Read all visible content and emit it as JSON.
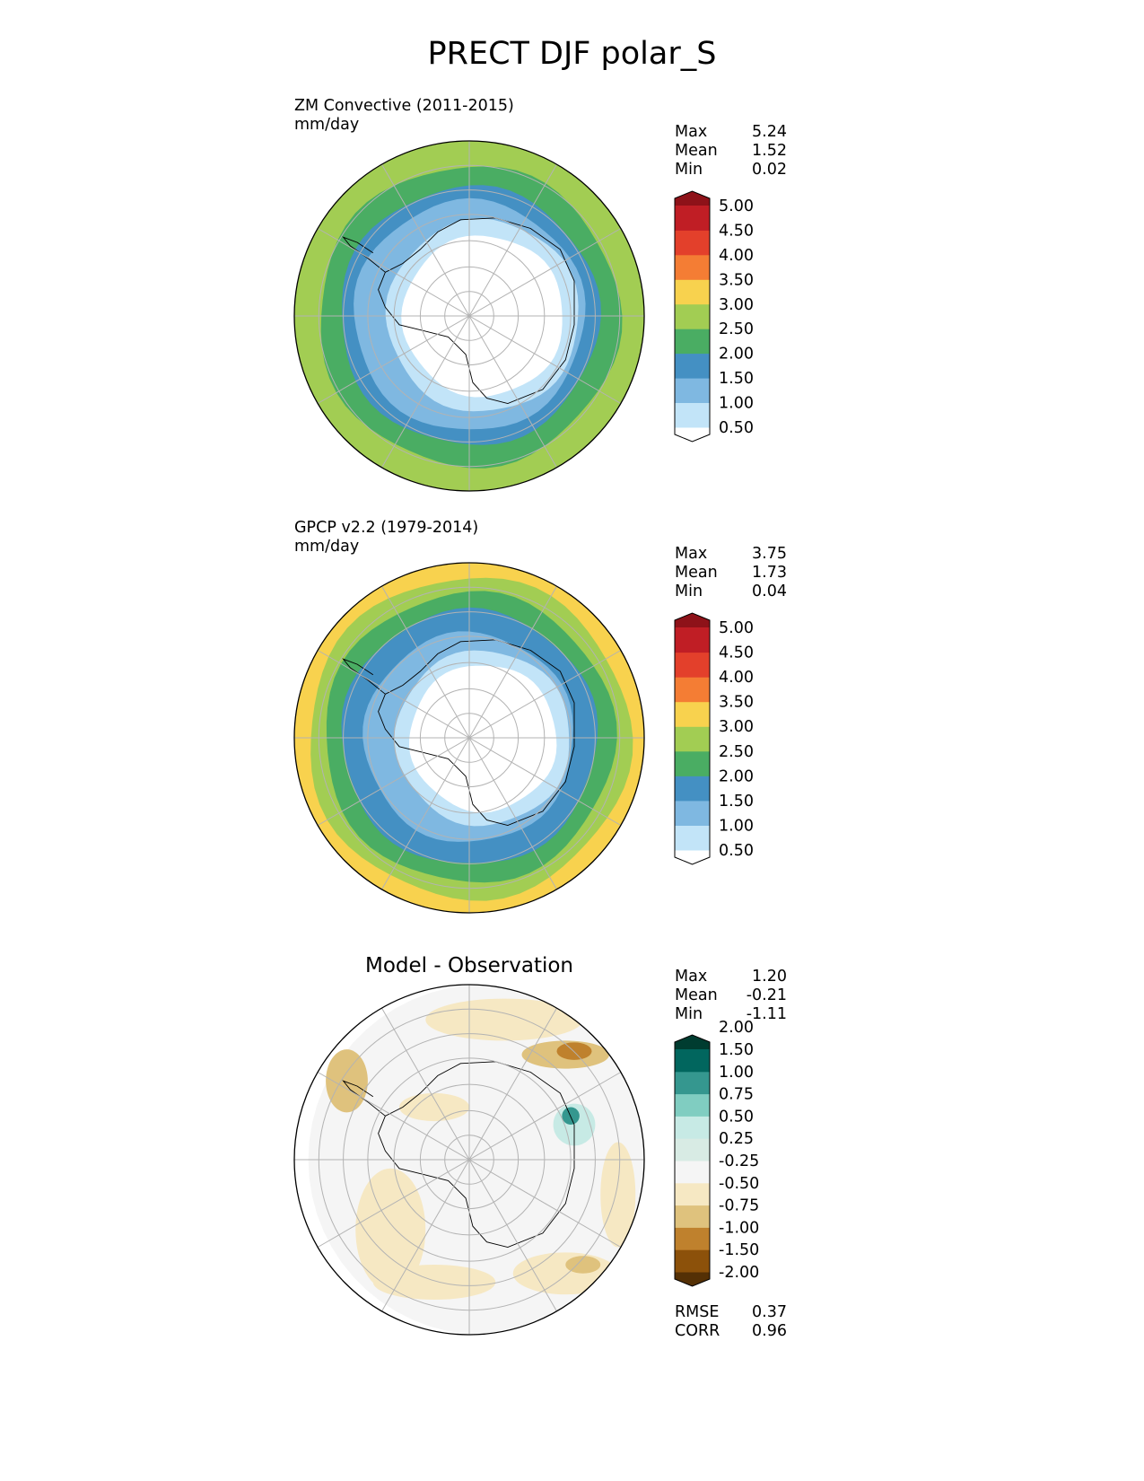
{
  "title": "PRECT DJF polar_S",
  "panels": [
    {
      "title_line1": "ZM Convective (2011-2015)",
      "title_line2": "mm/day",
      "stats": [
        {
          "label": "Max",
          "value": "5.24"
        },
        {
          "label": "Mean",
          "value": "1.52"
        },
        {
          "label": "Min",
          "value": "0.02"
        }
      ],
      "colorbar": {
        "colors": [
          "#ffffff",
          "#c2e4f8",
          "#7fb8e1",
          "#4490c3",
          "#4aad63",
          "#a2cd53",
          "#f8d24e",
          "#f47d34",
          "#e3402b",
          "#c01e25",
          "#8e1219"
        ],
        "tick_labels": [
          "0.50",
          "1.00",
          "1.50",
          "2.00",
          "2.50",
          "3.00",
          "3.50",
          "4.00",
          "4.50",
          "5.00"
        ]
      },
      "bands": [
        {
          "r": 1.0,
          "color": "#a2cd53"
        },
        {
          "r": 0.86,
          "color": "#4aad63"
        },
        {
          "r": 0.74,
          "color": "#4490c3"
        },
        {
          "r": 0.66,
          "color": "#7fb8e1"
        },
        {
          "r": 0.55,
          "color": "#c2e4f8"
        },
        {
          "r": 0.46,
          "color": "#ffffff"
        }
      ]
    },
    {
      "title_line1": "GPCP v2.2 (1979-2014)",
      "title_line2": "mm/day",
      "stats": [
        {
          "label": "Max",
          "value": "3.75"
        },
        {
          "label": "Mean",
          "value": "1.73"
        },
        {
          "label": "Min",
          "value": "0.04"
        }
      ],
      "colorbar": {
        "colors": [
          "#ffffff",
          "#c2e4f8",
          "#7fb8e1",
          "#4490c3",
          "#4aad63",
          "#a2cd53",
          "#f8d24e",
          "#f47d34",
          "#e3402b",
          "#c01e25",
          "#8e1219"
        ],
        "tick_labels": [
          "0.50",
          "1.00",
          "1.50",
          "2.00",
          "2.50",
          "3.00",
          "3.50",
          "4.00",
          "4.50",
          "5.00"
        ]
      },
      "bands": [
        {
          "r": 1.0,
          "color": "#f8d24e"
        },
        {
          "r": 0.92,
          "color": "#a2cd53"
        },
        {
          "r": 0.83,
          "color": "#4aad63"
        },
        {
          "r": 0.73,
          "color": "#4490c3"
        },
        {
          "r": 0.6,
          "color": "#7fb8e1"
        },
        {
          "r": 0.5,
          "color": "#c2e4f8"
        },
        {
          "r": 0.42,
          "color": "#ffffff"
        }
      ]
    },
    {
      "title_center": "Model - Observation",
      "stats": [
        {
          "label": "Max",
          "value": "1.20"
        },
        {
          "label": "Mean",
          "value": "-0.21"
        },
        {
          "label": "Min",
          "value": "-1.11"
        }
      ],
      "extra_stats": [
        {
          "label": "RMSE",
          "value": "0.37"
        },
        {
          "label": "CORR",
          "value": "0.96"
        }
      ],
      "colorbar": {
        "colors": [
          "#543005",
          "#8c510a",
          "#bf812d",
          "#dfc27d",
          "#f6e8c3",
          "#f5f5f5",
          "#d8ebe4",
          "#c7eae5",
          "#80cdc1",
          "#35978f",
          "#01665e",
          "#003c30"
        ],
        "tick_labels": [
          "-2.00",
          "-1.50",
          "-1.00",
          "-0.75",
          "-0.50",
          "-0.25",
          "0.25",
          "0.50",
          "0.75",
          "1.00",
          "1.50",
          "2.00"
        ]
      },
      "bands": [
        {
          "r": 1.0,
          "color": "#f5f5f5"
        }
      ]
    }
  ]
}
